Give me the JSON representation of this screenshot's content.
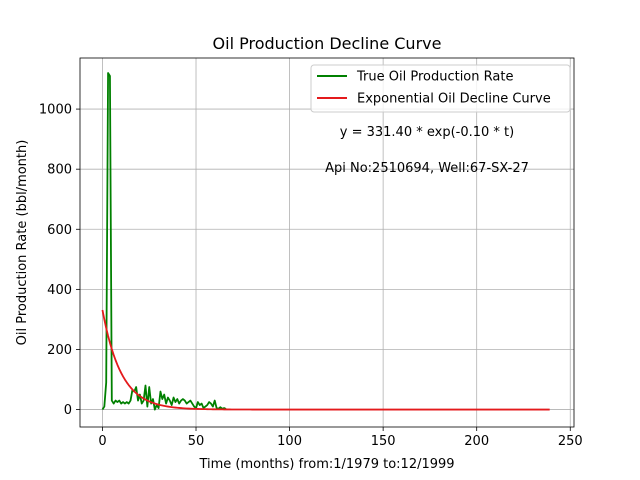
{
  "chart_data": {
    "type": "line",
    "title": "Oil Production Decline Curve",
    "xlabel": "Time (months) from:1/1979 to:12/1999",
    "ylabel": "Oil Production Rate (bbl/month)",
    "xlim": [
      -12,
      252
    ],
    "ylim": [
      -58,
      1170
    ],
    "xticks": [
      0,
      50,
      100,
      150,
      200,
      250
    ],
    "yticks": [
      0,
      200,
      400,
      600,
      800,
      1000
    ],
    "grid": true,
    "legend_position": "top-right",
    "series": [
      {
        "name": "True Oil Production Rate",
        "color": "#008000",
        "style": "line",
        "x": [
          0,
          1,
          2,
          3,
          4,
          5,
          6,
          7,
          8,
          9,
          10,
          11,
          12,
          13,
          14,
          15,
          16,
          17,
          18,
          19,
          20,
          21,
          22,
          23,
          24,
          25,
          26,
          27,
          28,
          29,
          30,
          31,
          32,
          33,
          34,
          35,
          36,
          37,
          38,
          39,
          40,
          41,
          42,
          43,
          44,
          45,
          46,
          47,
          48,
          49,
          50,
          51,
          52,
          53,
          54,
          55,
          56,
          57,
          58,
          59,
          60,
          61,
          62,
          63,
          64,
          65,
          66
        ],
        "y": [
          0,
          10,
          90,
          1120,
          1110,
          30,
          20,
          30,
          25,
          30,
          20,
          25,
          20,
          25,
          20,
          30,
          65,
          60,
          75,
          30,
          50,
          20,
          30,
          80,
          10,
          75,
          20,
          35,
          0,
          15,
          5,
          60,
          35,
          50,
          20,
          40,
          30,
          15,
          40,
          25,
          35,
          20,
          30,
          35,
          30,
          20,
          25,
          30,
          20,
          10,
          5,
          25,
          15,
          20,
          5,
          10,
          15,
          25,
          20,
          10,
          30,
          5,
          3,
          8,
          3,
          5,
          2
        ]
      },
      {
        "name": "Exponential Oil Decline Curve",
        "color": "#e41a1c",
        "style": "exp_fit",
        "a": 331.4,
        "b": -0.1,
        "x_range": [
          0,
          239
        ]
      }
    ],
    "annotations": [
      "y = 331.40 * exp(-0.10 * t)",
      "Api No:2510694, Well:67-SX-27"
    ]
  }
}
